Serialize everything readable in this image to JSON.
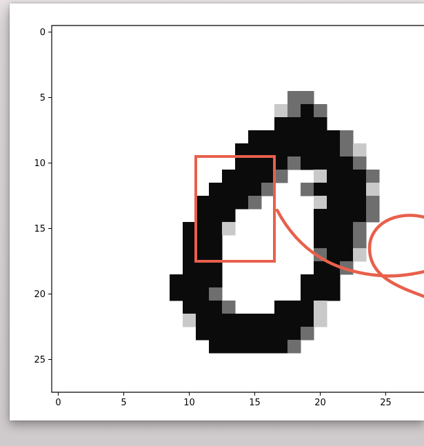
{
  "chart_data": {
    "type": "heatmap",
    "title": "",
    "xlabel": "",
    "ylabel": "",
    "xlim": [
      -0.5,
      27.5
    ],
    "ylim": [
      27.5,
      -0.5
    ],
    "y_axis_inverted": true,
    "grid": false,
    "colormap": "gray_r",
    "value_range": [
      0,
      255
    ],
    "x_ticks": [
      "0",
      "5",
      "10",
      "15",
      "20",
      "25"
    ],
    "y_ticks": [
      "0",
      "5",
      "10",
      "15",
      "20",
      "25"
    ],
    "image_rows": [
      "............................",
      "............................",
      "............................",
      "............................",
      "............................",
      "..................dd........",
      ".................ldXd.......",
      ".................XXXX.......",
      "...............XXXXXXXd.....",
      "..............XXXXXXXXdl....",
      "..............XXXXdXXXXd....",
      ".............XXXXd..lXXXd...",
      "............XXXXd..dXXXXl...",
      "...........XXXXd....lXXXd...",
      "...........XXX......XXXXd...",
      "..........XXXl......XXXd....",
      "..........XXX.......XXXd....",
      "..........XXX.......dXXl....",
      "..........XXX.......XXd.....",
      ".........XXXX......XXX......",
      ".........XXXd......XXX......",
      "..........XXXd...XXXl.......",
      "..........lXXXXXXXXXl.......",
      "...........XXXXXXXXd........",
      "............XXXXXXd.........",
      "............................",
      "............................",
      "............................"
    ],
    "highlight_box": {
      "x_range": [
        10.5,
        16.5
      ],
      "y_range": [
        9.5,
        17.5
      ],
      "color": "#e8604c"
    },
    "annotation_color": "#e8604c",
    "axis_color": "#000000",
    "background": "#ffffff"
  }
}
